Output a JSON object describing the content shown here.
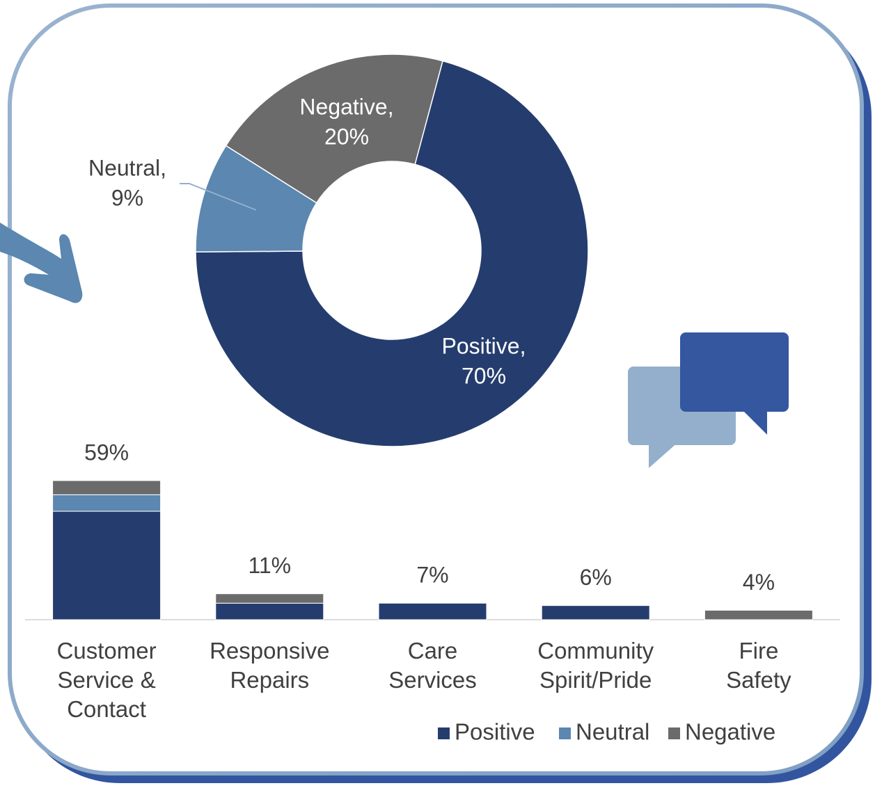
{
  "chart_data": [
    {
      "type": "donut",
      "categories": [
        "Positive,",
        "Neutral,",
        "Negative,"
      ],
      "values": [
        70,
        9,
        20
      ],
      "value_labels": [
        "70%",
        "9%",
        "20%"
      ],
      "colors": [
        "#253d6e",
        "#5b87b0",
        "#6b6b6b"
      ]
    },
    {
      "type": "stacked_bar",
      "categories": [
        "Customer Service & Contact",
        "Responsive Repairs",
        "Care Services",
        "Community Spirit/Pride",
        "Fire Safety"
      ],
      "total_labels": [
        "59%",
        "11%",
        "7%",
        "6%",
        "4%"
      ],
      "series": [
        {
          "name": "Positive",
          "color": "#253d6e",
          "values": [
            46,
            7,
            7,
            6,
            0
          ]
        },
        {
          "name": "Neutral",
          "color": "#5b87b0",
          "values": [
            7,
            0,
            0,
            0,
            0
          ]
        },
        {
          "name": "Negative",
          "color": "#6b6b6b",
          "values": [
            6,
            4,
            0,
            0,
            4
          ]
        }
      ],
      "legend": "bottom-right"
    }
  ]
}
